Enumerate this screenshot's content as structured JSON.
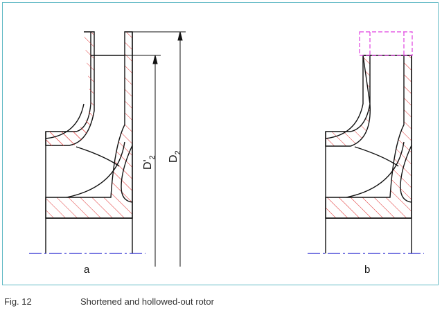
{
  "figure": {
    "label_a": "a",
    "label_b": "b",
    "dim_d2_prime": "D'",
    "dim_d2_prime_sub": "2",
    "dim_d2": "D",
    "dim_d2_sub": "2"
  },
  "caption": {
    "number": "Fig. 12",
    "text": "Shortened and hollowed-out rotor"
  },
  "colors": {
    "frame": "#5fb8c4",
    "outline": "#111111",
    "hatch": "#e03030",
    "centerline": "#2b2bd0",
    "removed_material": "#e040e0"
  }
}
